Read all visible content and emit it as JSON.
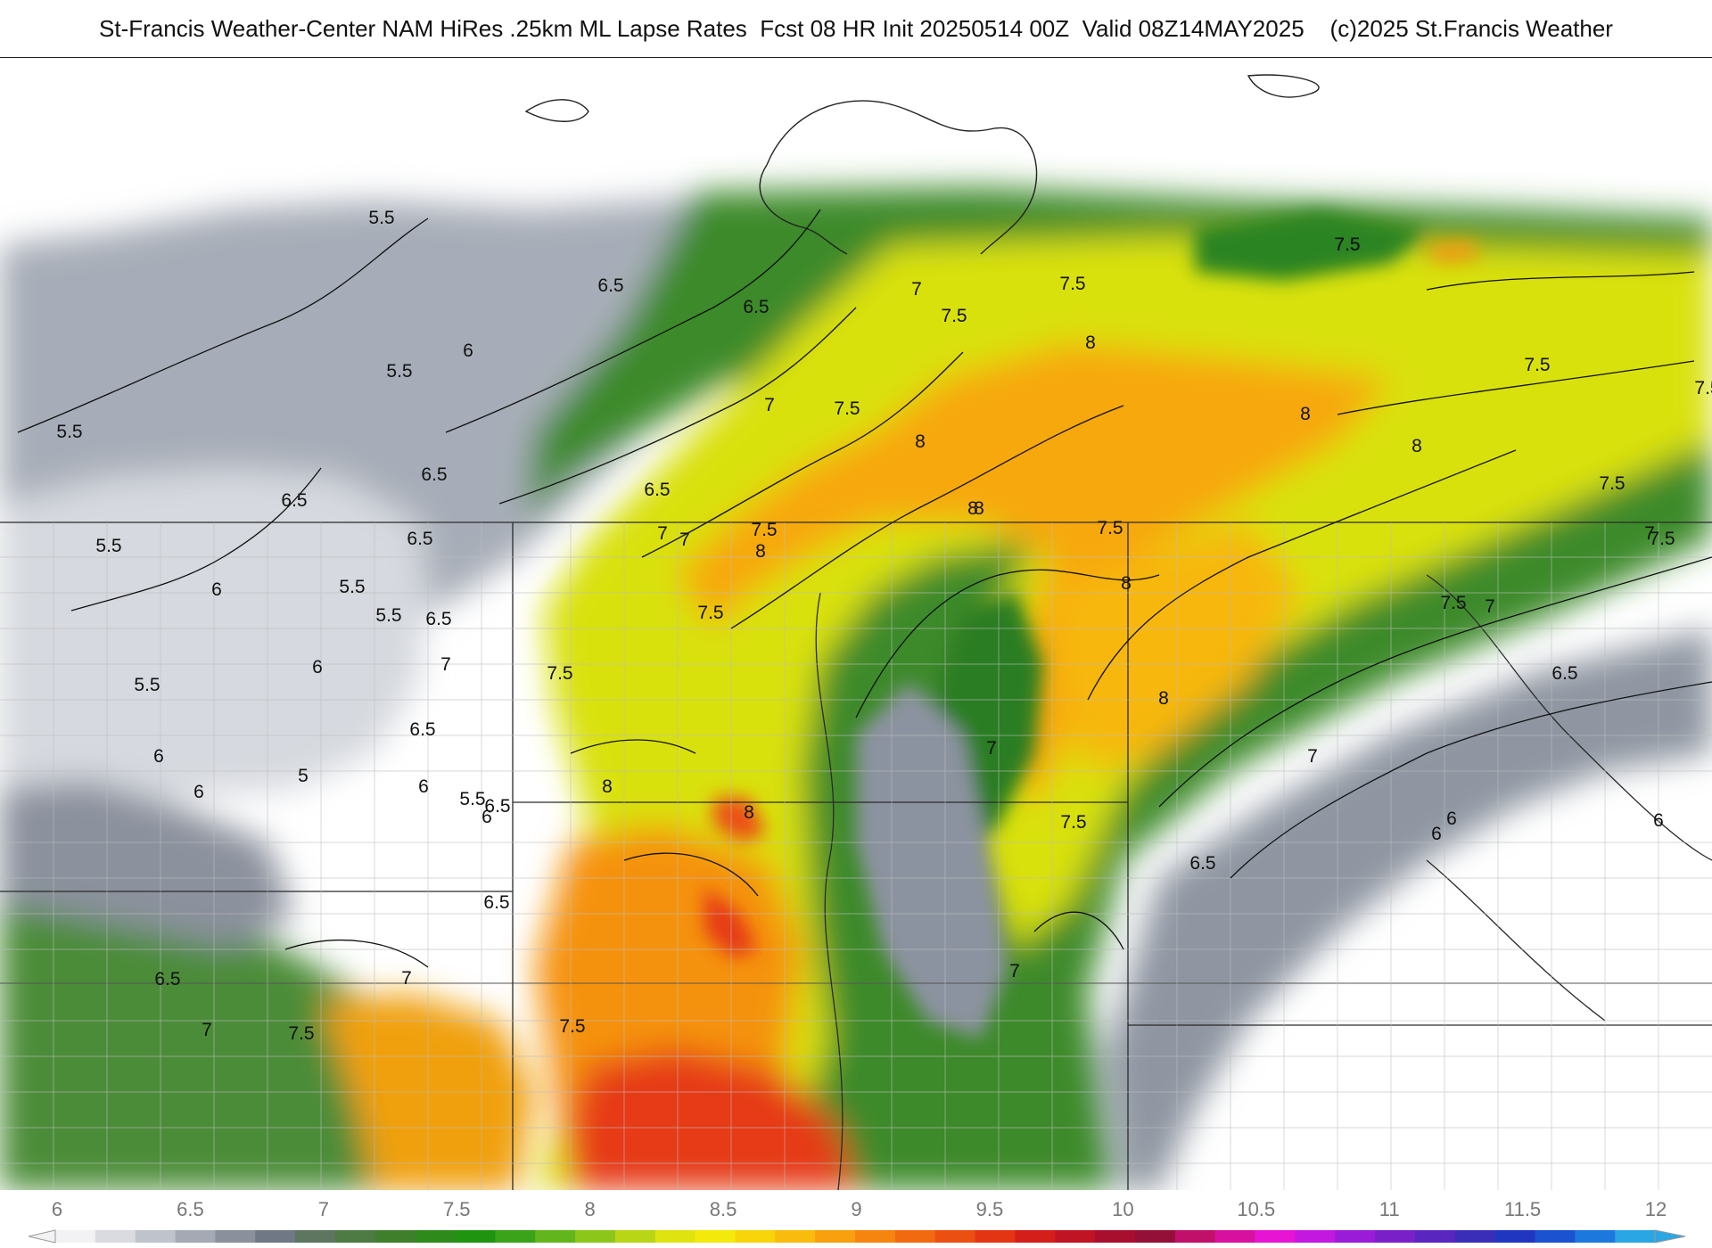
{
  "header": {
    "title": "St-Francis Weather-Center NAM HiRes .25km ML Lapse Rates  Fcst 08 HR Init 20250514 00Z  Valid 08Z14MAY2025    (c)2025 St.Francis Weather"
  },
  "colorbar": {
    "ticks": [
      "6",
      "6.5",
      "7",
      "7.5",
      "8",
      "8.5",
      "9",
      "9.5",
      "10",
      "10.5",
      "11",
      "11.5",
      "12"
    ],
    "colors": [
      "#f2f2f4",
      "#d9dbe0",
      "#bfc3cc",
      "#a4a9b4",
      "#8a909c",
      "#717885",
      "#5e7560",
      "#4e7a43",
      "#3f7f2c",
      "#2e8a1a",
      "#1f9410",
      "#3aa31a",
      "#62b51c",
      "#8dc61a",
      "#b8d615",
      "#dfe30f",
      "#f3e90a",
      "#f8d40a",
      "#f9bb0c",
      "#f8a00e",
      "#f6850f",
      "#f26a10",
      "#ec4f12",
      "#e33514",
      "#d41e1a",
      "#c01424",
      "#a80f2e",
      "#941038",
      "#c0106a",
      "#d810a0",
      "#e814d4",
      "#c218e0",
      "#9a1cd8",
      "#7a20c8",
      "#5a26c0",
      "#3a2eb8",
      "#2036c0",
      "#1a52d0",
      "#1c78dc",
      "#2aa6e4"
    ]
  },
  "map": {
    "contour_labels": [
      "5.5",
      "5.5",
      "5.5",
      "5.5",
      "5.5",
      "5.5",
      "5.5",
      "5.5",
      "6",
      "6",
      "6",
      "6",
      "6",
      "6",
      "6",
      "6",
      "6",
      "6.5",
      "6.5",
      "6.5",
      "6.5",
      "6.5",
      "6.5",
      "6.5",
      "6.5",
      "6.5",
      "6.5",
      "6.5",
      "6.5",
      "6.5",
      "7",
      "7",
      "7",
      "7",
      "7",
      "7",
      "7",
      "7",
      "7",
      "7",
      "7",
      "7",
      "7.5",
      "7.5",
      "7.5",
      "7.5",
      "7.5",
      "7.5",
      "7.5",
      "7.5",
      "7.5",
      "7.5",
      "7.5",
      "7.5",
      "7.5",
      "7.5",
      "7.5",
      "7.5",
      "7.5",
      "8",
      "8",
      "8",
      "8",
      "8",
      "8",
      "8",
      "8",
      "8",
      "8",
      "8",
      "5",
      "6"
    ]
  }
}
